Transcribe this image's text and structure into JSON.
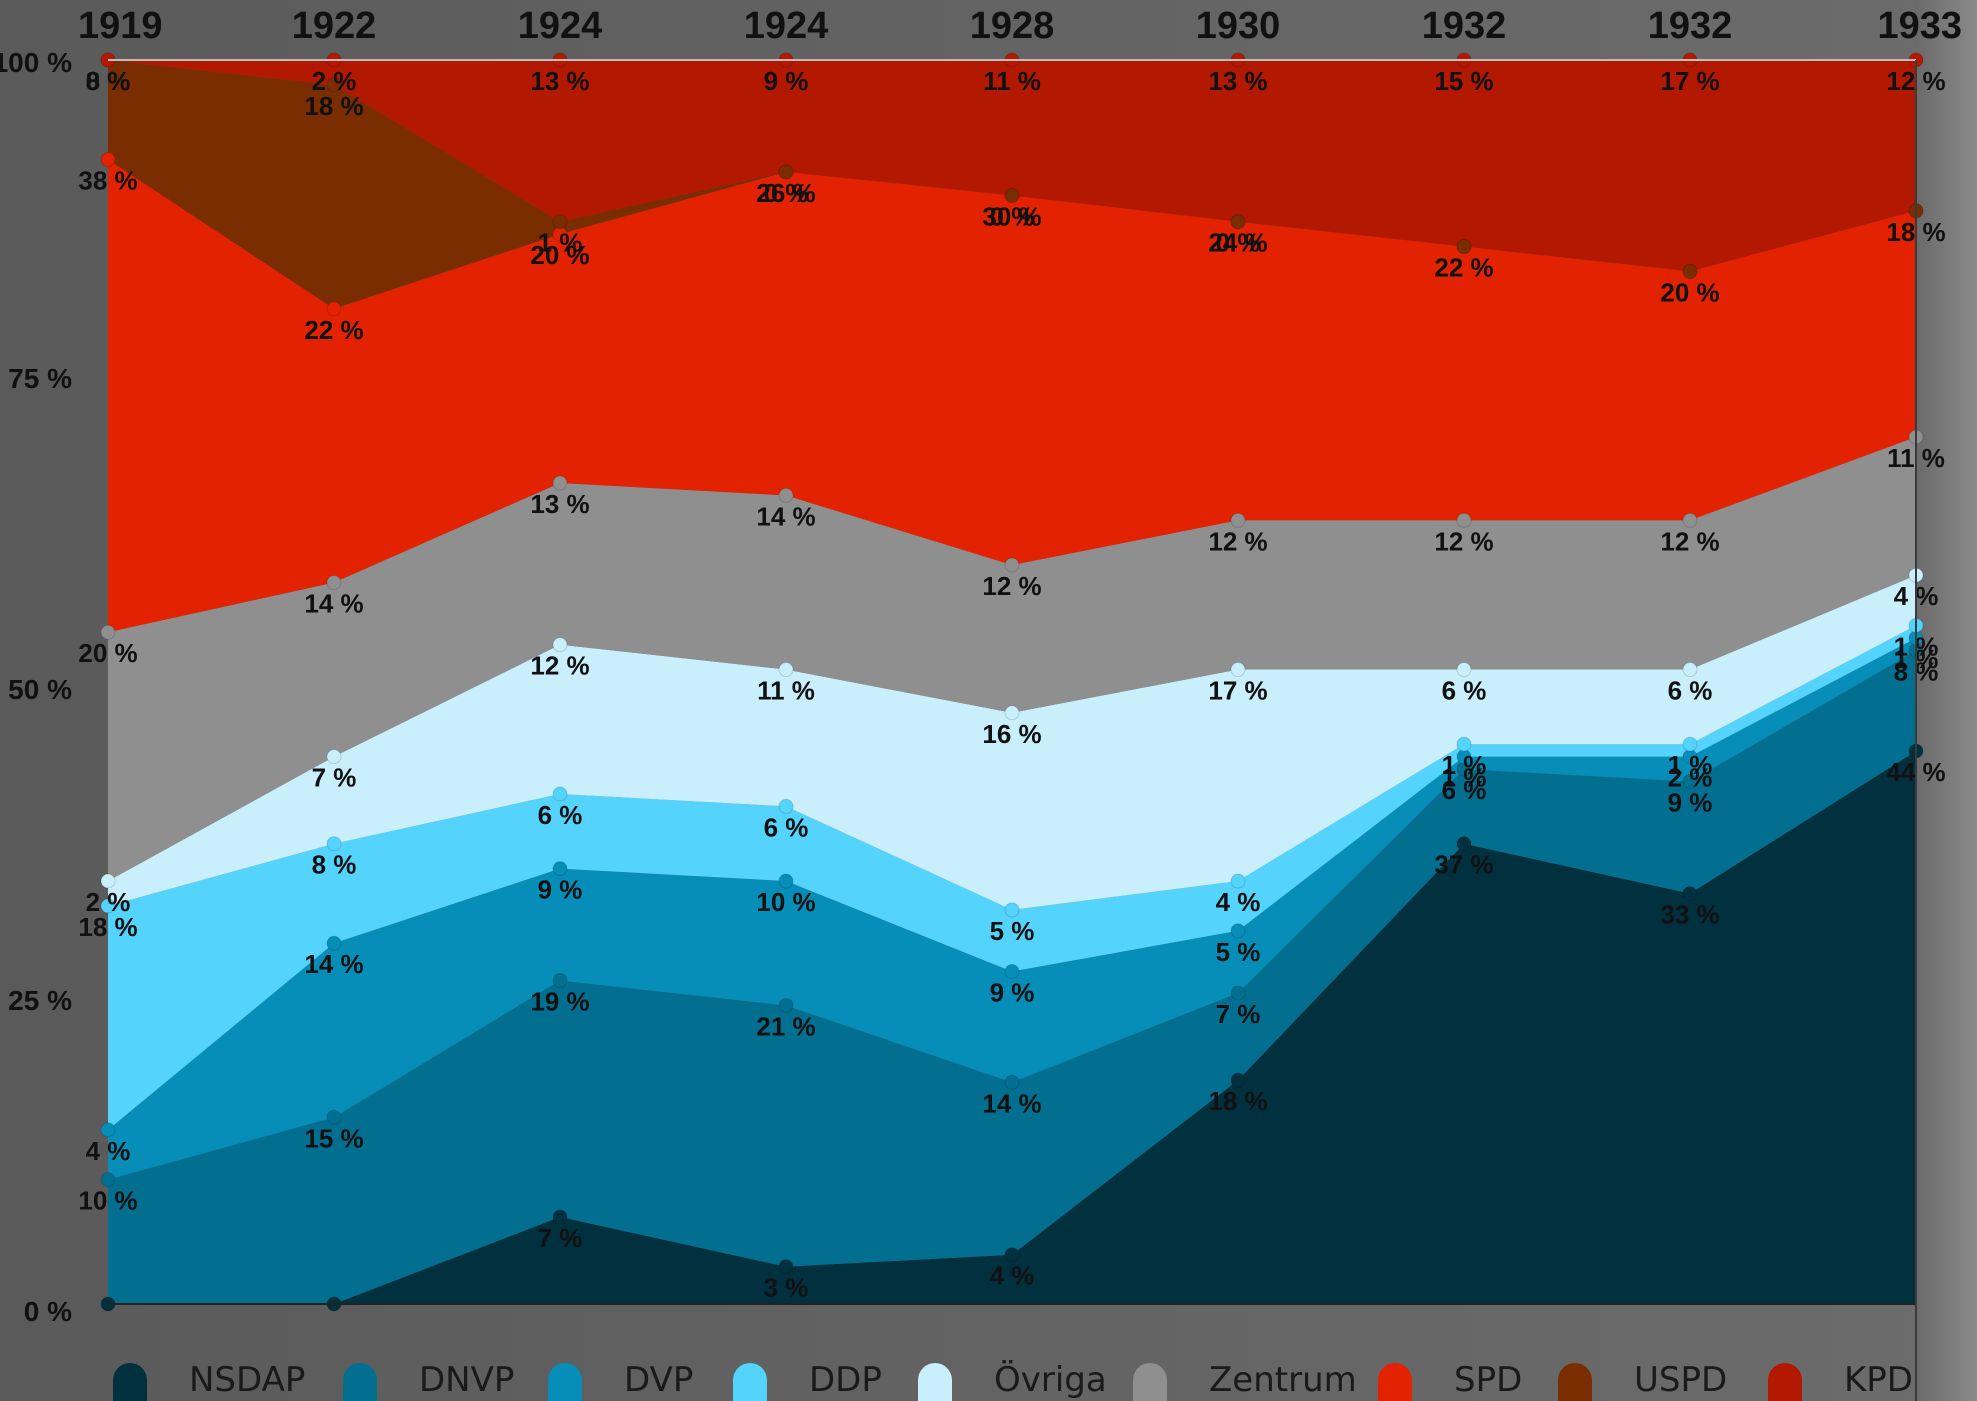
{
  "chart_data": {
    "type": "area",
    "stacked": true,
    "normalized": true,
    "categories": [
      "1919",
      "1922",
      "1924",
      "1924",
      "1928",
      "1930",
      "1932",
      "1932",
      "1933"
    ],
    "ylim": [
      0,
      100
    ],
    "yticks": [
      {
        "value": 0,
        "label": "0 %"
      },
      {
        "value": 25,
        "label": "25 %"
      },
      {
        "value": 50,
        "label": "50 %"
      },
      {
        "value": 75,
        "label": "75 %"
      },
      {
        "value": 100,
        "label": "100 %"
      }
    ],
    "grid": false,
    "legend_position": "bottom",
    "series": [
      {
        "name": "NSDAP",
        "color": "#01303f",
        "values": [
          0,
          0,
          7,
          3,
          4,
          18,
          37,
          33,
          44
        ],
        "labels": [
          "",
          "",
          "7 %",
          "3 %",
          "4 %",
          "18 %",
          "37 %",
          "33 %",
          "44 %"
        ]
      },
      {
        "name": "DNVP",
        "color": "#026f90",
        "values": [
          10,
          15,
          19,
          21,
          14,
          7,
          6,
          9,
          8
        ],
        "labels": [
          "10 %",
          "15 %",
          "19 %",
          "21 %",
          "14 %",
          "7 %",
          "6 %",
          "9 %",
          "8 %"
        ]
      },
      {
        "name": "DVP",
        "color": "#068db8",
        "values": [
          4,
          14,
          9,
          10,
          9,
          5,
          1,
          2,
          1
        ],
        "labels": [
          "4 %",
          "14 %",
          "9 %",
          "10 %",
          "9 %",
          "5 %",
          "1 %",
          "2 %",
          "1 %"
        ]
      },
      {
        "name": "DDP",
        "color": "#54d4fd",
        "values": [
          18,
          8,
          6,
          6,
          5,
          4,
          1,
          1,
          1
        ],
        "labels": [
          "18 %",
          "8 %",
          "6 %",
          "6 %",
          "5 %",
          "4 %",
          "1 %",
          "1 %",
          "1 %"
        ]
      },
      {
        "name": "Övriga",
        "color": "#c9effc",
        "values": [
          2,
          7,
          12,
          11,
          16,
          17,
          6,
          6,
          4
        ],
        "labels": [
          "2 %",
          "7 %",
          "12 %",
          "11 %",
          "16 %",
          "17 %",
          "6 %",
          "6 %",
          "4 %"
        ]
      },
      {
        "name": "Zentrum",
        "color": "#8f8f8f",
        "values": [
          20,
          14,
          13,
          14,
          12,
          12,
          12,
          12,
          11
        ],
        "labels": [
          "20 %",
          "14 %",
          "13 %",
          "14 %",
          "12 %",
          "12 %",
          "12 %",
          "12 %",
          "11 %"
        ]
      },
      {
        "name": "SPD",
        "color": "#e22200",
        "values": [
          38,
          22,
          20,
          26,
          30,
          24,
          22,
          20,
          18
        ],
        "labels": [
          "38 %",
          "22 %",
          "20 %",
          "26 %",
          "30 %",
          "24 %",
          "22 %",
          "20 %",
          "18 %"
        ]
      },
      {
        "name": "USPD",
        "color": "#792d00",
        "values": [
          8,
          18,
          1,
          0,
          0,
          0,
          0,
          0,
          0
        ],
        "labels": [
          "8 %",
          "18 %",
          "1 %",
          "0 %",
          "0 %",
          "0 %",
          "",
          "",
          ""
        ]
      },
      {
        "name": "KPD",
        "color": "#b31800",
        "values": [
          0,
          2,
          13,
          9,
          11,
          13,
          15,
          17,
          12
        ],
        "labels": [
          "0 %",
          "2 %",
          "13 %",
          "9 %",
          "11 %",
          "13 %",
          "15 %",
          "17 %",
          "12 %"
        ]
      }
    ]
  }
}
